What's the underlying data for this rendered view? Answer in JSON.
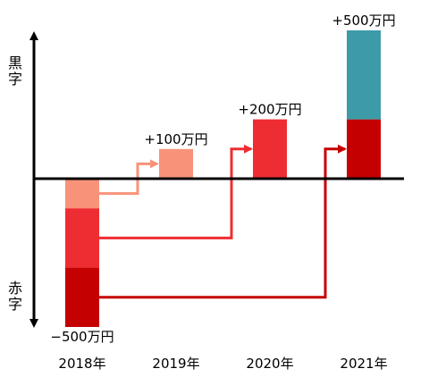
{
  "chart_data": {
    "type": "bar",
    "categories": [
      "2018年",
      "2019年",
      "2020年",
      "2021年"
    ],
    "bars": [
      {
        "category": "2018年",
        "label": "−500万円",
        "segments": [
          {
            "from": 0,
            "to": -100,
            "color": "#f8937a"
          },
          {
            "from": -100,
            "to": -300,
            "color": "#ee2d32"
          },
          {
            "from": -300,
            "to": -500,
            "color": "#c50000"
          }
        ]
      },
      {
        "category": "2019年",
        "label": "+100万円",
        "segments": [
          {
            "from": 0,
            "to": 100,
            "color": "#f8937a"
          }
        ]
      },
      {
        "category": "2020年",
        "label": "+200万円",
        "segments": [
          {
            "from": 0,
            "to": 200,
            "color": "#ee2d32"
          }
        ]
      },
      {
        "category": "2021年",
        "label": "+500万円",
        "segments": [
          {
            "from": 0,
            "to": 200,
            "color": "#c50000"
          },
          {
            "from": 200,
            "to": 500,
            "color": "#3d9ba8"
          }
        ]
      }
    ],
    "flows": [
      {
        "from_category": "2018年",
        "from_value": -50,
        "to_category": "2019年",
        "to_value": 50,
        "color": "#f8937a"
      },
      {
        "from_category": "2018年",
        "from_value": -200,
        "to_category": "2020年",
        "to_value": 100,
        "color": "#ee2d32"
      },
      {
        "from_category": "2018年",
        "from_value": -400,
        "to_category": "2021年",
        "to_value": 100,
        "color": "#c50000"
      }
    ],
    "ylabel_top": "黒字",
    "ylabel_bottom": "赤字",
    "ylabel_top_color": "#000000",
    "ylabel_bottom_color": "#e00000",
    "ylim": [
      -500,
      500
    ],
    "axis_color": "#000000",
    "grid": false
  }
}
